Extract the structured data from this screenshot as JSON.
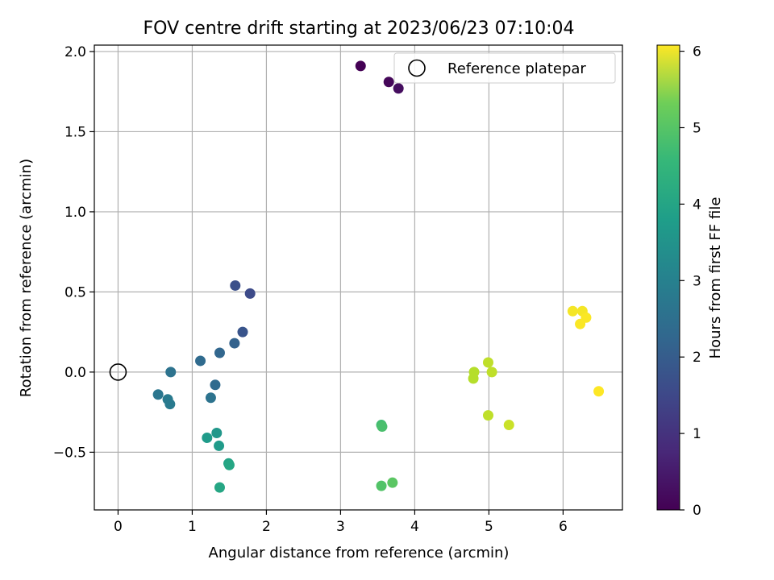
{
  "chart_data": {
    "type": "scatter",
    "title": "FOV centre drift starting at 2023/06/23 07:10:04",
    "xlabel": "Angular distance from reference (arcmin)",
    "ylabel": "Rotation from reference (arcmin)",
    "xlim": [
      -0.32,
      6.8
    ],
    "ylim": [
      -0.86,
      2.04
    ],
    "xticks": [
      0,
      1,
      2,
      3,
      4,
      5,
      6
    ],
    "xtick_labels": [
      "0",
      "1",
      "2",
      "3",
      "4",
      "5",
      "6"
    ],
    "yticks": [
      -0.5,
      0.0,
      0.5,
      1.0,
      1.5,
      2.0
    ],
    "ytick_labels": [
      "−0.5",
      "0.0",
      "0.5",
      "1.0",
      "1.5",
      "2.0"
    ],
    "grid": true,
    "legend": {
      "position": "top-right",
      "entries": [
        "Reference platepar"
      ]
    },
    "reference_point": {
      "x": 0,
      "y": 0,
      "label": "Reference platepar"
    },
    "colorbar": {
      "label": "Hours from first FF file",
      "min": 0,
      "max": 6.08,
      "ticks": [
        0,
        1,
        2,
        3,
        4,
        5,
        6
      ],
      "colormap": "viridis"
    },
    "points": [
      {
        "x": 3.27,
        "y": 1.91,
        "hours": 0.0
      },
      {
        "x": 3.65,
        "y": 1.81,
        "hours": 0.1
      },
      {
        "x": 3.78,
        "y": 1.77,
        "hours": 0.2
      },
      {
        "x": 1.78,
        "y": 0.49,
        "hours": 1.4
      },
      {
        "x": 1.58,
        "y": 0.54,
        "hours": 1.5
      },
      {
        "x": 1.68,
        "y": 0.25,
        "hours": 1.6
      },
      {
        "x": 1.57,
        "y": 0.18,
        "hours": 1.9
      },
      {
        "x": 1.37,
        "y": 0.12,
        "hours": 2.0
      },
      {
        "x": 1.11,
        "y": 0.07,
        "hours": 2.1
      },
      {
        "x": 1.31,
        "y": -0.08,
        "hours": 2.1
      },
      {
        "x": 1.25,
        "y": -0.16,
        "hours": 2.3
      },
      {
        "x": 0.71,
        "y": 0.0,
        "hours": 2.3
      },
      {
        "x": 0.54,
        "y": -0.14,
        "hours": 2.4
      },
      {
        "x": 0.67,
        "y": -0.17,
        "hours": 2.5
      },
      {
        "x": 0.7,
        "y": -0.2,
        "hours": 2.5
      },
      {
        "x": 1.33,
        "y": -0.38,
        "hours": 3.2
      },
      {
        "x": 1.2,
        "y": -0.41,
        "hours": 3.3
      },
      {
        "x": 1.36,
        "y": -0.46,
        "hours": 3.3
      },
      {
        "x": 1.49,
        "y": -0.57,
        "hours": 3.5
      },
      {
        "x": 1.5,
        "y": -0.58,
        "hours": 3.6
      },
      {
        "x": 1.37,
        "y": -0.72,
        "hours": 3.6
      },
      {
        "x": 3.55,
        "y": -0.33,
        "hours": 4.2
      },
      {
        "x": 3.56,
        "y": -0.34,
        "hours": 4.3
      },
      {
        "x": 3.55,
        "y": -0.71,
        "hours": 4.4
      },
      {
        "x": 3.7,
        "y": -0.69,
        "hours": 4.5
      },
      {
        "x": 4.8,
        "y": 0.0,
        "hours": 5.4
      },
      {
        "x": 4.79,
        "y": -0.04,
        "hours": 5.4
      },
      {
        "x": 4.99,
        "y": 0.06,
        "hours": 5.5
      },
      {
        "x": 5.04,
        "y": 0.0,
        "hours": 5.5
      },
      {
        "x": 4.99,
        "y": -0.27,
        "hours": 5.5
      },
      {
        "x": 5.27,
        "y": -0.33,
        "hours": 5.6
      },
      {
        "x": 6.13,
        "y": 0.38,
        "hours": 6.0
      },
      {
        "x": 6.26,
        "y": 0.38,
        "hours": 6.0
      },
      {
        "x": 6.31,
        "y": 0.34,
        "hours": 6.05
      },
      {
        "x": 6.23,
        "y": 0.3,
        "hours": 6.05
      },
      {
        "x": 6.48,
        "y": -0.12,
        "hours": 6.08
      }
    ]
  }
}
